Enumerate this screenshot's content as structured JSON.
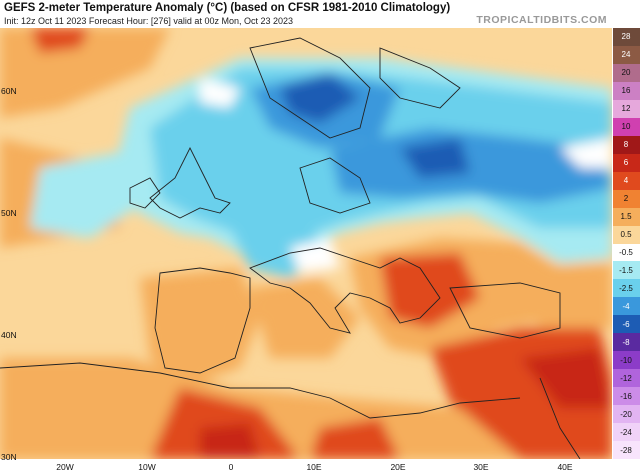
{
  "header": {
    "title": "GEFS 2-meter Temperature Anomaly (°C) (based on CFSR 1981-2010 Climatology)",
    "subtitle": "Init: 12z Oct 11 2023   Forecast Hour: [276]   valid at 00z Mon, Oct 23 2023",
    "brand": "TROPICALTIDBITS.COM"
  },
  "axes": {
    "latitudes": [
      "60N",
      "50N",
      "40N",
      "30N"
    ],
    "longitudes": [
      "20W",
      "10W",
      "0",
      "10E",
      "20E",
      "30E",
      "40E"
    ]
  },
  "legend": {
    "labels": [
      "28",
      "24",
      "20",
      "16",
      "12",
      "10",
      "8",
      "6",
      "4",
      "2",
      "1.5",
      "0.5",
      "-0.5",
      "-1.5",
      "-2.5",
      "-4",
      "-6",
      "-8",
      "-10",
      "-12",
      "-16",
      "-20",
      "-24",
      "-28"
    ],
    "colors": [
      "#6e4a3a",
      "#8c5a44",
      "#b06c8c",
      "#cc80c4",
      "#e6a8dc",
      "#d040b0",
      "#a01818",
      "#c82818",
      "#e04a1e",
      "#f08232",
      "#f5ae5c",
      "#fbd79a",
      "#ffffff",
      "#a6eaf2",
      "#6ad0ec",
      "#3a98dc",
      "#1d5cb4",
      "#5a2aa0",
      "#8c3cc8",
      "#b064dc",
      "#cc8ce8",
      "#e2b4f2",
      "#f0d2f8",
      "#f8e4fc"
    ]
  },
  "map": {
    "variable": "2-meter temperature anomaly",
    "units": "°C",
    "region": "Europe / Mediterranean",
    "colors": {
      "ocean_warm": "#fbd79a",
      "warm_mod": "#f5ae5c",
      "warm_strong": "#e04a1e",
      "neutral": "#ffffff",
      "cool_light": "#a6eaf2",
      "cool_mod": "#6ad0ec",
      "cool_strong": "#3a98dc",
      "cool_deep": "#1d5cb4"
    }
  }
}
